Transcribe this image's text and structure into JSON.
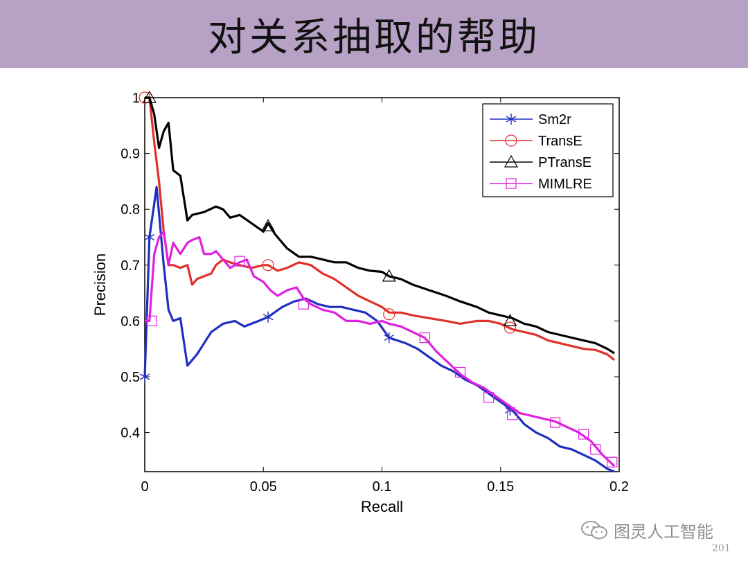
{
  "slide": {
    "title": "对关系抽取的帮助",
    "page_number": "201"
  },
  "watermark": {
    "text": "图灵人工智能",
    "icon": "wechat-icon"
  },
  "chart_data": {
    "type": "line",
    "xlabel": "Recall",
    "ylabel": "Precision",
    "xlim": [
      0,
      0.2
    ],
    "ylim": [
      0.33,
      1.0
    ],
    "xticks": [
      0,
      0.05,
      0.1,
      0.15,
      0.2
    ],
    "xtick_labels": [
      "0",
      "0.05",
      "0.1",
      "0.15",
      "0.2"
    ],
    "yticks": [
      0.4,
      0.5,
      0.6,
      0.7,
      0.8,
      0.9,
      1.0
    ],
    "ytick_labels": [
      "0.4",
      "0.5",
      "0.6",
      "0.7",
      "0.8",
      "0.9",
      "1"
    ],
    "grid": false,
    "legend": "top-right",
    "series": [
      {
        "name": "Sm2r",
        "color": "#1f2fbf",
        "marker": "star",
        "x": [
          0,
          0.002,
          0.005,
          0.008,
          0.01,
          0.012,
          0.015,
          0.018,
          0.022,
          0.028,
          0.033,
          0.038,
          0.042,
          0.048,
          0.052,
          0.058,
          0.063,
          0.068,
          0.073,
          0.078,
          0.083,
          0.088,
          0.093,
          0.098,
          0.103,
          0.11,
          0.115,
          0.12,
          0.125,
          0.13,
          0.135,
          0.14,
          0.145,
          0.15,
          0.155,
          0.16,
          0.165,
          0.17,
          0.175,
          0.18,
          0.185,
          0.19,
          0.195,
          0.198
        ],
        "y": [
          0.5,
          0.75,
          0.84,
          0.7,
          0.62,
          0.6,
          0.605,
          0.52,
          0.54,
          0.58,
          0.595,
          0.6,
          0.59,
          0.6,
          0.607,
          0.625,
          0.635,
          0.64,
          0.63,
          0.625,
          0.625,
          0.62,
          0.615,
          0.6,
          0.57,
          0.56,
          0.55,
          0.535,
          0.52,
          0.51,
          0.495,
          0.485,
          0.47,
          0.455,
          0.44,
          0.415,
          0.4,
          0.39,
          0.375,
          0.37,
          0.36,
          0.35,
          0.335,
          0.33
        ],
        "marker_x": [
          0,
          0.002,
          0.052,
          0.103,
          0.154
        ],
        "marker_y": [
          0.5,
          0.75,
          0.607,
          0.57,
          0.44
        ]
      },
      {
        "name": "TransE",
        "color": "#e0302a",
        "marker": "circle",
        "x": [
          0,
          0.002,
          0.004,
          0.006,
          0.008,
          0.01,
          0.012,
          0.015,
          0.018,
          0.02,
          0.022,
          0.025,
          0.028,
          0.03,
          0.033,
          0.036,
          0.04,
          0.045,
          0.05,
          0.052,
          0.056,
          0.06,
          0.065,
          0.07,
          0.075,
          0.08,
          0.085,
          0.09,
          0.095,
          0.1,
          0.103,
          0.108,
          0.113,
          0.12,
          0.127,
          0.133,
          0.14,
          0.145,
          0.15,
          0.155,
          0.16,
          0.165,
          0.17,
          0.175,
          0.18,
          0.185,
          0.19,
          0.195,
          0.198
        ],
        "y": [
          1.0,
          1.0,
          0.92,
          0.85,
          0.76,
          0.7,
          0.7,
          0.695,
          0.7,
          0.665,
          0.675,
          0.68,
          0.685,
          0.7,
          0.71,
          0.705,
          0.7,
          0.695,
          0.7,
          0.7,
          0.69,
          0.695,
          0.705,
          0.7,
          0.685,
          0.675,
          0.66,
          0.645,
          0.635,
          0.625,
          0.615,
          0.615,
          0.61,
          0.605,
          0.6,
          0.595,
          0.6,
          0.6,
          0.595,
          0.585,
          0.58,
          0.575,
          0.565,
          0.56,
          0.555,
          0.55,
          0.548,
          0.54,
          0.53
        ],
        "marker_x": [
          0,
          0.052,
          0.103,
          0.154
        ],
        "marker_y": [
          1.0,
          0.7,
          0.612,
          0.588
        ]
      },
      {
        "name": "PTransE",
        "color": "#000000",
        "marker": "triangle",
        "x": [
          0,
          0.002,
          0.004,
          0.006,
          0.008,
          0.01,
          0.012,
          0.015,
          0.018,
          0.02,
          0.025,
          0.03,
          0.033,
          0.036,
          0.04,
          0.045,
          0.05,
          0.052,
          0.055,
          0.06,
          0.065,
          0.07,
          0.075,
          0.08,
          0.085,
          0.09,
          0.095,
          0.1,
          0.103,
          0.108,
          0.113,
          0.12,
          0.127,
          0.133,
          0.14,
          0.145,
          0.15,
          0.155,
          0.16,
          0.165,
          0.17,
          0.175,
          0.18,
          0.185,
          0.19,
          0.195,
          0.198
        ],
        "y": [
          1.0,
          1.0,
          0.97,
          0.91,
          0.94,
          0.955,
          0.87,
          0.86,
          0.78,
          0.79,
          0.795,
          0.805,
          0.8,
          0.785,
          0.79,
          0.775,
          0.76,
          0.775,
          0.755,
          0.73,
          0.715,
          0.715,
          0.71,
          0.705,
          0.705,
          0.695,
          0.69,
          0.688,
          0.68,
          0.675,
          0.665,
          0.655,
          0.645,
          0.635,
          0.625,
          0.615,
          0.61,
          0.605,
          0.595,
          0.59,
          0.58,
          0.575,
          0.57,
          0.565,
          0.56,
          0.55,
          0.542
        ],
        "marker_x": [
          0.002,
          0.052,
          0.103,
          0.154
        ],
        "marker_y": [
          1.0,
          0.77,
          0.68,
          0.6
        ]
      },
      {
        "name": "MIMLRE",
        "color": "#e020e0",
        "marker": "square",
        "x": [
          0,
          0.002,
          0.004,
          0.006,
          0.008,
          0.01,
          0.012,
          0.015,
          0.018,
          0.02,
          0.023,
          0.025,
          0.028,
          0.03,
          0.033,
          0.036,
          0.04,
          0.043,
          0.046,
          0.05,
          0.053,
          0.056,
          0.06,
          0.064,
          0.067,
          0.07,
          0.075,
          0.08,
          0.085,
          0.09,
          0.095,
          0.1,
          0.103,
          0.108,
          0.113,
          0.118,
          0.123,
          0.128,
          0.133,
          0.138,
          0.143,
          0.148,
          0.153,
          0.158,
          0.163,
          0.168,
          0.173,
          0.178,
          0.183,
          0.188,
          0.193,
          0.198
        ],
        "y": [
          0.6,
          0.6,
          0.72,
          0.75,
          0.76,
          0.7,
          0.74,
          0.72,
          0.74,
          0.745,
          0.75,
          0.72,
          0.72,
          0.725,
          0.71,
          0.695,
          0.705,
          0.71,
          0.68,
          0.67,
          0.655,
          0.645,
          0.655,
          0.66,
          0.64,
          0.63,
          0.62,
          0.615,
          0.6,
          0.6,
          0.595,
          0.6,
          0.595,
          0.59,
          0.58,
          0.57,
          0.545,
          0.525,
          0.505,
          0.49,
          0.48,
          0.465,
          0.45,
          0.435,
          0.43,
          0.425,
          0.42,
          0.41,
          0.4,
          0.385,
          0.36,
          0.34
        ],
        "marker_x": [
          0.003,
          0.04,
          0.067,
          0.118,
          0.133,
          0.145,
          0.155,
          0.173,
          0.185,
          0.19,
          0.197
        ],
        "marker_y": [
          0.6,
          0.707,
          0.63,
          0.57,
          0.508,
          0.463,
          0.432,
          0.418,
          0.397,
          0.37,
          0.347
        ]
      }
    ]
  }
}
